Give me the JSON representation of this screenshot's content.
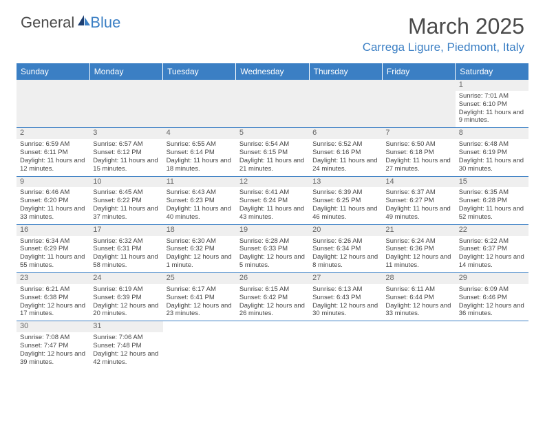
{
  "logo": {
    "text1": "General",
    "text2": "Blue"
  },
  "title": "March 2025",
  "location": "Carrega Ligure, Piedmont, Italy",
  "colors": {
    "accent": "#3b7fc4",
    "header_bg": "#3b7fc4",
    "daynum_bg": "#efefef",
    "text": "#444444"
  },
  "weekdays": [
    "Sunday",
    "Monday",
    "Tuesday",
    "Wednesday",
    "Thursday",
    "Friday",
    "Saturday"
  ],
  "weeks": [
    [
      null,
      null,
      null,
      null,
      null,
      null,
      {
        "n": "1",
        "sr": "Sunrise: 7:01 AM",
        "ss": "Sunset: 6:10 PM",
        "dl": "Daylight: 11 hours and 9 minutes."
      }
    ],
    [
      {
        "n": "2",
        "sr": "Sunrise: 6:59 AM",
        "ss": "Sunset: 6:11 PM",
        "dl": "Daylight: 11 hours and 12 minutes."
      },
      {
        "n": "3",
        "sr": "Sunrise: 6:57 AM",
        "ss": "Sunset: 6:12 PM",
        "dl": "Daylight: 11 hours and 15 minutes."
      },
      {
        "n": "4",
        "sr": "Sunrise: 6:55 AM",
        "ss": "Sunset: 6:14 PM",
        "dl": "Daylight: 11 hours and 18 minutes."
      },
      {
        "n": "5",
        "sr": "Sunrise: 6:54 AM",
        "ss": "Sunset: 6:15 PM",
        "dl": "Daylight: 11 hours and 21 minutes."
      },
      {
        "n": "6",
        "sr": "Sunrise: 6:52 AM",
        "ss": "Sunset: 6:16 PM",
        "dl": "Daylight: 11 hours and 24 minutes."
      },
      {
        "n": "7",
        "sr": "Sunrise: 6:50 AM",
        "ss": "Sunset: 6:18 PM",
        "dl": "Daylight: 11 hours and 27 minutes."
      },
      {
        "n": "8",
        "sr": "Sunrise: 6:48 AM",
        "ss": "Sunset: 6:19 PM",
        "dl": "Daylight: 11 hours and 30 minutes."
      }
    ],
    [
      {
        "n": "9",
        "sr": "Sunrise: 6:46 AM",
        "ss": "Sunset: 6:20 PM",
        "dl": "Daylight: 11 hours and 33 minutes."
      },
      {
        "n": "10",
        "sr": "Sunrise: 6:45 AM",
        "ss": "Sunset: 6:22 PM",
        "dl": "Daylight: 11 hours and 37 minutes."
      },
      {
        "n": "11",
        "sr": "Sunrise: 6:43 AM",
        "ss": "Sunset: 6:23 PM",
        "dl": "Daylight: 11 hours and 40 minutes."
      },
      {
        "n": "12",
        "sr": "Sunrise: 6:41 AM",
        "ss": "Sunset: 6:24 PM",
        "dl": "Daylight: 11 hours and 43 minutes."
      },
      {
        "n": "13",
        "sr": "Sunrise: 6:39 AM",
        "ss": "Sunset: 6:25 PM",
        "dl": "Daylight: 11 hours and 46 minutes."
      },
      {
        "n": "14",
        "sr": "Sunrise: 6:37 AM",
        "ss": "Sunset: 6:27 PM",
        "dl": "Daylight: 11 hours and 49 minutes."
      },
      {
        "n": "15",
        "sr": "Sunrise: 6:35 AM",
        "ss": "Sunset: 6:28 PM",
        "dl": "Daylight: 11 hours and 52 minutes."
      }
    ],
    [
      {
        "n": "16",
        "sr": "Sunrise: 6:34 AM",
        "ss": "Sunset: 6:29 PM",
        "dl": "Daylight: 11 hours and 55 minutes."
      },
      {
        "n": "17",
        "sr": "Sunrise: 6:32 AM",
        "ss": "Sunset: 6:31 PM",
        "dl": "Daylight: 11 hours and 58 minutes."
      },
      {
        "n": "18",
        "sr": "Sunrise: 6:30 AM",
        "ss": "Sunset: 6:32 PM",
        "dl": "Daylight: 12 hours and 1 minute."
      },
      {
        "n": "19",
        "sr": "Sunrise: 6:28 AM",
        "ss": "Sunset: 6:33 PM",
        "dl": "Daylight: 12 hours and 5 minutes."
      },
      {
        "n": "20",
        "sr": "Sunrise: 6:26 AM",
        "ss": "Sunset: 6:34 PM",
        "dl": "Daylight: 12 hours and 8 minutes."
      },
      {
        "n": "21",
        "sr": "Sunrise: 6:24 AM",
        "ss": "Sunset: 6:36 PM",
        "dl": "Daylight: 12 hours and 11 minutes."
      },
      {
        "n": "22",
        "sr": "Sunrise: 6:22 AM",
        "ss": "Sunset: 6:37 PM",
        "dl": "Daylight: 12 hours and 14 minutes."
      }
    ],
    [
      {
        "n": "23",
        "sr": "Sunrise: 6:21 AM",
        "ss": "Sunset: 6:38 PM",
        "dl": "Daylight: 12 hours and 17 minutes."
      },
      {
        "n": "24",
        "sr": "Sunrise: 6:19 AM",
        "ss": "Sunset: 6:39 PM",
        "dl": "Daylight: 12 hours and 20 minutes."
      },
      {
        "n": "25",
        "sr": "Sunrise: 6:17 AM",
        "ss": "Sunset: 6:41 PM",
        "dl": "Daylight: 12 hours and 23 minutes."
      },
      {
        "n": "26",
        "sr": "Sunrise: 6:15 AM",
        "ss": "Sunset: 6:42 PM",
        "dl": "Daylight: 12 hours and 26 minutes."
      },
      {
        "n": "27",
        "sr": "Sunrise: 6:13 AM",
        "ss": "Sunset: 6:43 PM",
        "dl": "Daylight: 12 hours and 30 minutes."
      },
      {
        "n": "28",
        "sr": "Sunrise: 6:11 AM",
        "ss": "Sunset: 6:44 PM",
        "dl": "Daylight: 12 hours and 33 minutes."
      },
      {
        "n": "29",
        "sr": "Sunrise: 6:09 AM",
        "ss": "Sunset: 6:46 PM",
        "dl": "Daylight: 12 hours and 36 minutes."
      }
    ],
    [
      {
        "n": "30",
        "sr": "Sunrise: 7:08 AM",
        "ss": "Sunset: 7:47 PM",
        "dl": "Daylight: 12 hours and 39 minutes."
      },
      {
        "n": "31",
        "sr": "Sunrise: 7:06 AM",
        "ss": "Sunset: 7:48 PM",
        "dl": "Daylight: 12 hours and 42 minutes."
      },
      null,
      null,
      null,
      null,
      null
    ]
  ]
}
